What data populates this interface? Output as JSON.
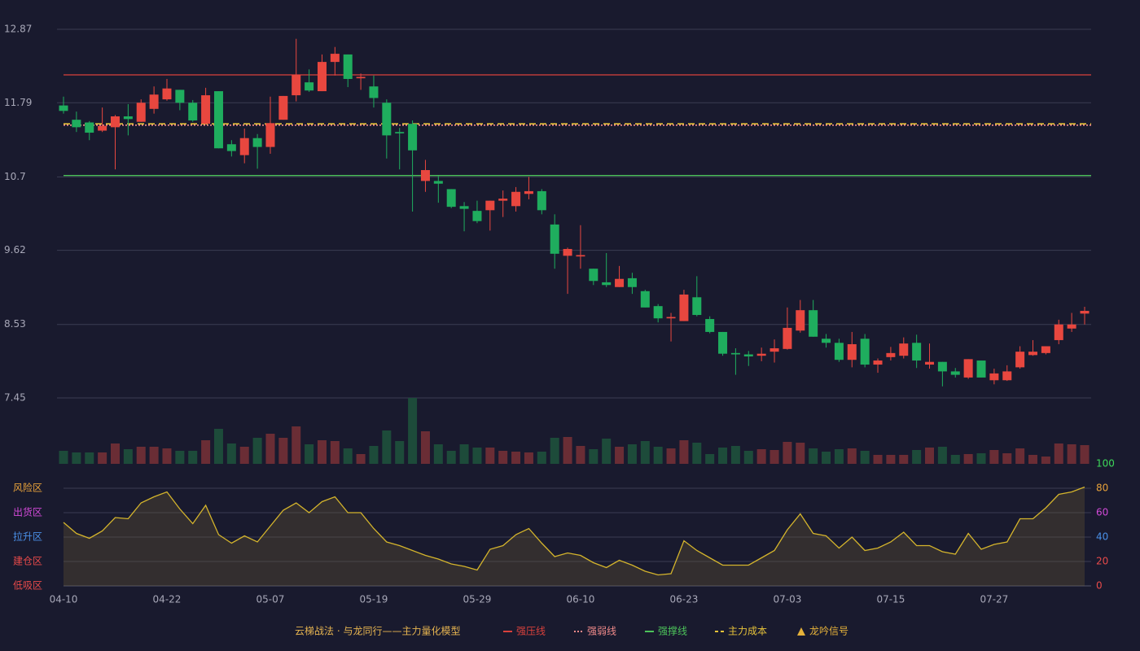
{
  "chart_data": {
    "type": "candlestick",
    "categories": [
      "04-10",
      null,
      null,
      null,
      null,
      null,
      null,
      null,
      "04-22",
      null,
      null,
      null,
      null,
      null,
      null,
      null,
      "05-07",
      null,
      null,
      null,
      null,
      null,
      null,
      null,
      "05-19",
      null,
      null,
      null,
      null,
      null,
      null,
      null,
      "05-29",
      null,
      null,
      null,
      null,
      null,
      null,
      null,
      "06-10",
      null,
      null,
      null,
      null,
      null,
      null,
      null,
      "06-23",
      null,
      null,
      null,
      null,
      null,
      null,
      null,
      "07-03",
      null,
      null,
      null,
      null,
      null,
      null,
      null,
      "07-15",
      null,
      null,
      null,
      null,
      null,
      null,
      null,
      "07-27",
      null,
      null,
      null,
      null,
      null,
      null,
      null
    ],
    "open": [
      11.75,
      11.54,
      11.5,
      11.38,
      11.43,
      11.59,
      11.51,
      11.7,
      11.84,
      11.98,
      11.79,
      11.48,
      11.96,
      11.18,
      11.02,
      11.27,
      11.14,
      11.54,
      11.9,
      12.09,
      11.96,
      12.39,
      12.5,
      12.15,
      12.03,
      11.79,
      11.36,
      11.48,
      10.64,
      10.64,
      10.52,
      10.27,
      10.2,
      10.21,
      10.35,
      10.27,
      10.45,
      10.49,
      10.0,
      9.54,
      9.53,
      9.35,
      9.15,
      9.08,
      9.21,
      9.02,
      8.8,
      8.62,
      8.58,
      8.93,
      8.61,
      8.42,
      8.11,
      8.09,
      8.07,
      8.13,
      8.17,
      8.44,
      8.74,
      8.32,
      8.26,
      8.01,
      8.32,
      7.94,
      8.05,
      8.07,
      8.26,
      7.94,
      7.98,
      7.84,
      7.75,
      8.0,
      7.71,
      7.71,
      7.9,
      8.08,
      8.11,
      8.3,
      8.47,
      8.69
    ],
    "high": [
      11.88,
      11.66,
      11.52,
      11.72,
      11.61,
      11.77,
      11.84,
      12.03,
      12.14,
      11.98,
      11.83,
      12.01,
      11.96,
      11.24,
      11.41,
      11.33,
      11.88,
      11.89,
      12.73,
      12.28,
      12.5,
      12.61,
      12.5,
      12.22,
      12.19,
      11.84,
      11.42,
      11.53,
      10.95,
      10.71,
      10.52,
      10.33,
      10.35,
      10.35,
      10.5,
      10.55,
      10.7,
      10.52,
      10.15,
      9.66,
      9.99,
      9.35,
      9.58,
      9.39,
      9.29,
      9.04,
      8.83,
      8.7,
      9.04,
      9.24,
      8.65,
      8.42,
      8.18,
      8.14,
      8.19,
      8.31,
      8.78,
      8.89,
      8.89,
      8.39,
      8.32,
      8.42,
      8.39,
      8.03,
      8.2,
      8.34,
      8.38,
      8.25,
      7.98,
      7.89,
      8.02,
      8.0,
      7.88,
      7.93,
      8.21,
      8.3,
      8.21,
      8.6,
      8.7,
      8.79
    ],
    "low": [
      11.63,
      11.36,
      11.24,
      11.36,
      10.81,
      11.31,
      11.51,
      11.63,
      11.82,
      11.68,
      11.51,
      11.47,
      11.12,
      11.0,
      10.9,
      10.82,
      11.04,
      11.54,
      11.81,
      11.95,
      11.96,
      12.19,
      12.02,
      11.98,
      11.72,
      10.97,
      10.81,
      10.19,
      10.48,
      10.32,
      10.24,
      9.9,
      10.02,
      9.91,
      10.11,
      10.19,
      10.37,
      10.15,
      9.35,
      8.98,
      9.35,
      9.11,
      9.08,
      9.08,
      8.98,
      8.78,
      8.56,
      8.28,
      8.58,
      8.65,
      8.4,
      8.07,
      7.79,
      7.92,
      7.99,
      7.97,
      8.16,
      8.41,
      8.35,
      8.19,
      7.98,
      7.9,
      7.9,
      7.82,
      8.0,
      8.03,
      7.89,
      7.88,
      7.62,
      7.75,
      7.73,
      7.75,
      7.65,
      7.7,
      7.88,
      8.07,
      8.09,
      8.24,
      8.42,
      8.53
    ],
    "close": [
      11.67,
      11.43,
      11.35,
      11.45,
      11.59,
      11.55,
      11.79,
      11.91,
      12.0,
      11.79,
      11.53,
      11.9,
      11.12,
      11.08,
      11.27,
      11.14,
      11.49,
      11.89,
      12.2,
      11.97,
      12.39,
      12.51,
      12.14,
      12.17,
      11.86,
      11.31,
      11.34,
      11.09,
      10.8,
      10.6,
      10.26,
      10.23,
      10.05,
      10.35,
      10.38,
      10.48,
      10.49,
      10.21,
      9.57,
      9.64,
      9.55,
      9.17,
      9.11,
      9.2,
      9.08,
      8.78,
      8.62,
      8.64,
      8.97,
      8.67,
      8.42,
      8.1,
      8.09,
      8.06,
      8.1,
      8.18,
      8.48,
      8.74,
      8.35,
      8.26,
      8.01,
      8.24,
      7.94,
      8.0,
      8.11,
      8.25,
      8.0,
      7.98,
      7.84,
      7.79,
      8.02,
      7.75,
      7.81,
      7.84,
      8.13,
      8.13,
      8.21,
      8.53,
      8.53,
      8.73
    ],
    "volume": [
      16,
      14,
      14,
      14,
      25,
      18,
      21,
      21,
      19,
      16,
      16,
      29,
      43,
      25,
      21,
      32,
      37,
      32,
      46,
      24,
      29,
      28,
      19,
      12,
      22,
      41,
      28,
      81,
      40,
      24,
      16,
      24,
      20,
      20,
      16,
      15,
      14,
      15,
      32,
      33,
      22,
      18,
      31,
      21,
      24,
      28,
      21,
      19,
      29,
      26,
      12,
      20,
      22,
      16,
      18,
      17,
      27,
      26,
      19,
      15,
      18,
      19,
      16,
      11,
      11,
      11,
      17,
      20,
      21,
      11,
      12,
      13,
      17,
      13,
      19,
      11,
      9,
      25,
      24,
      23
    ],
    "up_color": "#e8473f",
    "down_color": "#1fad5e",
    "volume_up_color": "#6a2d35",
    "volume_down_color": "#1d4b3a",
    "ylim": [
      7.45,
      12.87
    ],
    "yticks": [
      12.87,
      11.79,
      10.7,
      9.62,
      8.53,
      7.45
    ],
    "grid": true,
    "lines": [
      {
        "name": "强压线",
        "value": 12.2,
        "color": "#d9413c",
        "style": "solid"
      },
      {
        "name": "强弱线",
        "value": 11.46,
        "color": "#f08a8a",
        "style": "dotted"
      },
      {
        "name": "强撑线",
        "value": 10.72,
        "color": "#4cc25a",
        "style": "solid"
      },
      {
        "name": "主力成本",
        "value": 11.48,
        "color": "#e6c23a",
        "style": "dashed"
      }
    ],
    "signal_name": "龙吟信号",
    "signal_color": "#e6b23a",
    "model_title": "云梯战法 · 与龙同行——主力量化模型",
    "indicator": {
      "values": [
        52,
        43,
        39,
        45,
        56,
        55,
        68,
        73,
        77,
        63,
        51,
        66,
        42,
        35,
        41,
        36,
        49,
        62,
        68,
        60,
        69,
        73,
        60,
        60,
        47,
        36,
        33,
        29,
        25,
        22,
        18,
        16,
        13,
        30,
        33,
        42,
        47,
        35,
        24,
        27,
        25,
        19,
        15,
        21,
        17,
        12,
        9,
        10,
        37,
        29,
        23,
        17,
        17,
        17,
        23,
        29,
        46,
        59,
        43,
        41,
        31,
        40,
        29,
        31,
        36,
        44,
        33,
        33,
        28,
        26,
        43,
        30,
        34,
        36,
        55,
        55,
        64,
        75,
        77,
        81
      ],
      "color": "#d4b42c",
      "ylim": [
        0,
        100
      ],
      "yticks": [
        0,
        20,
        40,
        60,
        80,
        100
      ],
      "ytick_colors": [
        "#e84a4a",
        "#e84a4a",
        "#4a90e8",
        "#d24ad8",
        "#e8a23a",
        "#3ed95a"
      ],
      "zones": [
        {
          "label": "风险区",
          "value": 80,
          "color": "#e8a23a"
        },
        {
          "label": "出货区",
          "value": 60,
          "color": "#d24ad8"
        },
        {
          "label": "拉升区",
          "value": 40,
          "color": "#4a90e8"
        },
        {
          "label": "建仓区",
          "value": 20,
          "color": "#e84a4a"
        },
        {
          "label": "低吸区",
          "value": 0,
          "color": "#e84a4a"
        }
      ]
    }
  }
}
